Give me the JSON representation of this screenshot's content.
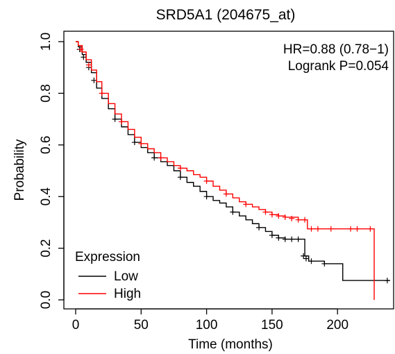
{
  "chart_data": {
    "type": "line",
    "title": "SRD5A1 (204675_at)",
    "xlabel": "Time (months)",
    "ylabel": "Probability",
    "xlim": [
      0,
      240
    ],
    "ylim": [
      0,
      1
    ],
    "xticks": [
      0,
      50,
      100,
      150,
      200
    ],
    "yticks": [
      0.0,
      0.2,
      0.4,
      0.6,
      0.8,
      1.0
    ],
    "annotations": [
      "HR=0.88 (0.78−1)",
      "Logrank P=0.054"
    ],
    "legend": {
      "title": "Expression",
      "position": "bottom-left"
    },
    "grid": false,
    "series": [
      {
        "name": "Low",
        "color": "#000000",
        "points": [
          [
            0,
            1.0
          ],
          [
            2,
            0.98
          ],
          [
            5,
            0.95
          ],
          [
            8,
            0.92
          ],
          [
            12,
            0.88
          ],
          [
            16,
            0.82
          ],
          [
            20,
            0.78
          ],
          [
            25,
            0.74
          ],
          [
            30,
            0.7
          ],
          [
            35,
            0.67
          ],
          [
            40,
            0.64
          ],
          [
            45,
            0.61
          ],
          [
            50,
            0.59
          ],
          [
            55,
            0.57
          ],
          [
            60,
            0.55
          ],
          [
            65,
            0.535
          ],
          [
            70,
            0.52
          ],
          [
            75,
            0.5
          ],
          [
            80,
            0.475
          ],
          [
            85,
            0.455
          ],
          [
            90,
            0.44
          ],
          [
            95,
            0.42
          ],
          [
            100,
            0.4
          ],
          [
            105,
            0.385
          ],
          [
            110,
            0.375
          ],
          [
            115,
            0.36
          ],
          [
            120,
            0.34
          ],
          [
            125,
            0.325
          ],
          [
            130,
            0.31
          ],
          [
            135,
            0.295
          ],
          [
            140,
            0.28
          ],
          [
            145,
            0.265
          ],
          [
            150,
            0.25
          ],
          [
            155,
            0.24
          ],
          [
            160,
            0.235
          ],
          [
            165,
            0.235
          ],
          [
            175,
            0.235
          ],
          [
            175,
            0.17
          ],
          [
            178,
            0.15
          ],
          [
            180,
            0.15
          ],
          [
            190,
            0.14
          ],
          [
            204,
            0.14
          ],
          [
            204,
            0.075
          ],
          [
            240,
            0.075
          ]
        ],
        "censor_marks": [
          [
            3,
            0.97
          ],
          [
            6,
            0.94
          ],
          [
            10,
            0.9
          ],
          [
            14,
            0.85
          ],
          [
            30,
            0.7
          ],
          [
            45,
            0.61
          ],
          [
            60,
            0.55
          ],
          [
            80,
            0.475
          ],
          [
            100,
            0.4
          ],
          [
            120,
            0.34
          ],
          [
            140,
            0.28
          ],
          [
            150,
            0.25
          ],
          [
            155,
            0.24
          ],
          [
            160,
            0.235
          ],
          [
            165,
            0.235
          ],
          [
            170,
            0.235
          ],
          [
            174,
            0.17
          ],
          [
            176,
            0.16
          ],
          [
            180,
            0.15
          ],
          [
            190,
            0.14
          ],
          [
            238,
            0.075
          ]
        ]
      },
      {
        "name": "High",
        "color": "#ff0000",
        "points": [
          [
            0,
            1.0
          ],
          [
            2,
            0.985
          ],
          [
            5,
            0.96
          ],
          [
            8,
            0.93
          ],
          [
            12,
            0.89
          ],
          [
            16,
            0.845
          ],
          [
            20,
            0.8
          ],
          [
            25,
            0.76
          ],
          [
            30,
            0.72
          ],
          [
            35,
            0.69
          ],
          [
            40,
            0.66
          ],
          [
            45,
            0.63
          ],
          [
            50,
            0.605
          ],
          [
            55,
            0.585
          ],
          [
            60,
            0.57
          ],
          [
            65,
            0.55
          ],
          [
            70,
            0.535
          ],
          [
            75,
            0.52
          ],
          [
            80,
            0.51
          ],
          [
            85,
            0.5
          ],
          [
            90,
            0.485
          ],
          [
            95,
            0.475
          ],
          [
            100,
            0.46
          ],
          [
            105,
            0.44
          ],
          [
            110,
            0.425
          ],
          [
            115,
            0.41
          ],
          [
            120,
            0.395
          ],
          [
            125,
            0.38
          ],
          [
            130,
            0.37
          ],
          [
            135,
            0.36
          ],
          [
            140,
            0.35
          ],
          [
            145,
            0.34
          ],
          [
            150,
            0.33
          ],
          [
            155,
            0.325
          ],
          [
            160,
            0.32
          ],
          [
            170,
            0.31
          ],
          [
            177,
            0.31
          ],
          [
            177,
            0.275
          ],
          [
            200,
            0.275
          ],
          [
            228,
            0.275
          ],
          [
            228,
            0.0
          ]
        ],
        "censor_marks": [
          [
            4,
            0.97
          ],
          [
            10,
            0.91
          ],
          [
            20,
            0.8
          ],
          [
            35,
            0.69
          ],
          [
            50,
            0.605
          ],
          [
            65,
            0.55
          ],
          [
            80,
            0.51
          ],
          [
            100,
            0.46
          ],
          [
            115,
            0.41
          ],
          [
            130,
            0.37
          ],
          [
            145,
            0.34
          ],
          [
            150,
            0.33
          ],
          [
            155,
            0.325
          ],
          [
            160,
            0.32
          ],
          [
            165,
            0.315
          ],
          [
            170,
            0.31
          ],
          [
            175,
            0.31
          ],
          [
            180,
            0.275
          ],
          [
            185,
            0.275
          ],
          [
            195,
            0.275
          ],
          [
            210,
            0.275
          ],
          [
            215,
            0.275
          ],
          [
            225,
            0.275
          ]
        ]
      }
    ]
  }
}
